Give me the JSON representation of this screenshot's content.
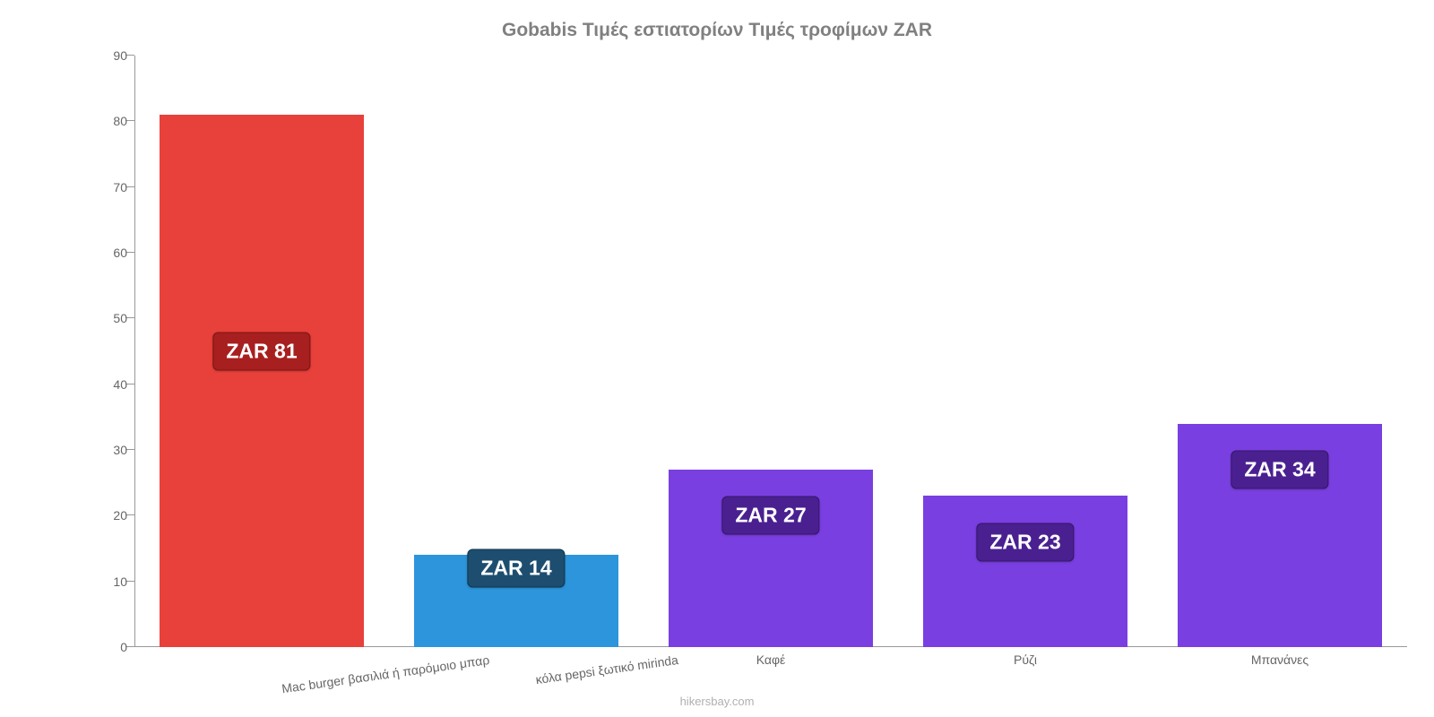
{
  "chart": {
    "type": "bar",
    "title": "Gobabis Τιμές εστιατορίων Τιμές τροφίμων ZAR",
    "title_fontsize": 21,
    "title_color": "#808080",
    "background_color": "#ffffff",
    "axis_color": "#999999",
    "tick_label_color": "#666666",
    "tick_fontsize": 14,
    "ylim": [
      0,
      90
    ],
    "ytick_step": 10,
    "yticks": [
      0,
      10,
      20,
      30,
      40,
      50,
      60,
      70,
      80,
      90
    ],
    "bar_width_ratio": 0.8,
    "categories": [
      "Mac burger βασιλιά ή παρόμοιο μπαρ",
      "κόλα pepsi ξωτικό mirinda",
      "Καφέ",
      "Ρύζι",
      "Μπανάνες"
    ],
    "values": [
      81,
      14,
      27,
      23,
      34
    ],
    "bar_colors": [
      "#e8403a",
      "#2d95dc",
      "#7a3fe0",
      "#7a3fe0",
      "#7a3fe0"
    ],
    "value_labels": [
      "ZAR 81",
      "ZAR 14",
      "ZAR 27",
      "ZAR 23",
      "ZAR 34"
    ],
    "badge_bg_colors": [
      "#a81f1f",
      "#1d4e6f",
      "#4a2090",
      "#4a2090",
      "#4a2090"
    ],
    "badge_border_colors": [
      "#7a1515",
      "#11344c",
      "#34166a",
      "#34166a",
      "#34166a"
    ],
    "badge_fontsize": 23,
    "badge_text_color": "#ffffff",
    "category_rotation_first_two": -8,
    "attribution": "hikersbay.com",
    "attribution_color": "#b0b0b0"
  }
}
